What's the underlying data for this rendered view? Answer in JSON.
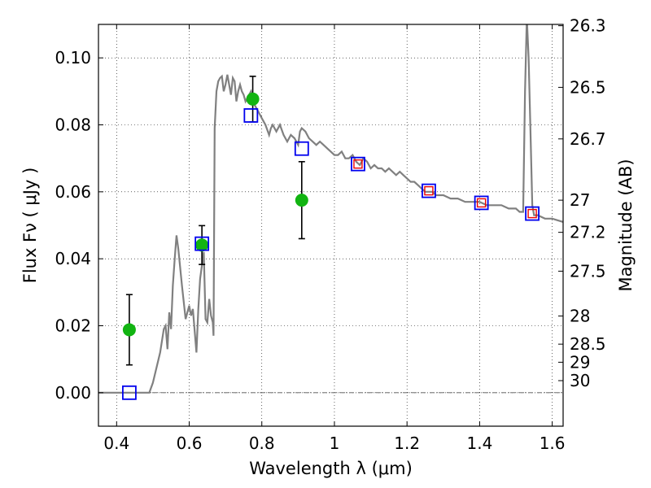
{
  "chart_data": {
    "type": "scatter",
    "xlabel": "Wavelength  λ (μm)",
    "ylabel": "Flux  Fν  ( μJy )",
    "y2label": "Magnitude (AB)",
    "xlim": [
      0.35,
      1.63
    ],
    "ylim": [
      -0.01,
      0.11
    ],
    "grid": true,
    "x_ticks": [
      {
        "value": 0.4,
        "label": "0.4"
      },
      {
        "value": 0.6,
        "label": "0.6"
      },
      {
        "value": 0.8,
        "label": "0.8"
      },
      {
        "value": 1.0,
        "label": "1"
      },
      {
        "value": 1.2,
        "label": "1.2"
      },
      {
        "value": 1.4,
        "label": "1.4"
      },
      {
        "value": 1.6,
        "label": "1.6"
      }
    ],
    "y_ticks": [
      {
        "value": 0.0,
        "label": "0.00"
      },
      {
        "value": 0.02,
        "label": "0.02"
      },
      {
        "value": 0.04,
        "label": "0.04"
      },
      {
        "value": 0.06,
        "label": "0.06"
      },
      {
        "value": 0.08,
        "label": "0.08"
      },
      {
        "value": 0.1,
        "label": "0.10"
      }
    ],
    "mag_ticks": [
      {
        "value": 0.1096,
        "label": "26.3"
      },
      {
        "value": 0.0912,
        "label": "26.5"
      },
      {
        "value": 0.0758,
        "label": "26.7"
      },
      {
        "value": 0.0575,
        "label": "27"
      },
      {
        "value": 0.0479,
        "label": "27.2"
      },
      {
        "value": 0.0363,
        "label": "27.5"
      },
      {
        "value": 0.0229,
        "label": "28"
      },
      {
        "value": 0.0145,
        "label": "28.5"
      },
      {
        "value": 0.0091,
        "label": "29"
      },
      {
        "value": 0.0036,
        "label": "30"
      }
    ],
    "series": [
      {
        "kind": "line",
        "color": "#808080",
        "x": [
          0.35,
          0.49,
          0.5,
          0.52,
          0.53,
          0.535,
          0.54,
          0.545,
          0.55,
          0.555,
          0.56,
          0.565,
          0.57,
          0.58,
          0.59,
          0.6,
          0.605,
          0.61,
          0.62,
          0.625,
          0.63,
          0.64,
          0.645,
          0.65,
          0.655,
          0.66,
          0.665,
          0.667,
          0.67,
          0.675,
          0.68,
          0.685,
          0.69,
          0.695,
          0.7,
          0.705,
          0.71,
          0.715,
          0.72,
          0.725,
          0.73,
          0.735,
          0.74,
          0.745,
          0.75,
          0.755,
          0.76,
          0.77,
          0.78,
          0.79,
          0.8,
          0.805,
          0.81,
          0.82,
          0.825,
          0.83,
          0.84,
          0.85,
          0.86,
          0.87,
          0.88,
          0.89,
          0.9,
          0.905,
          0.91,
          0.92,
          0.93,
          0.94,
          0.95,
          0.96,
          0.97,
          0.98,
          0.99,
          1.0,
          1.01,
          1.02,
          1.03,
          1.04,
          1.05,
          1.06,
          1.07,
          1.08,
          1.09,
          1.1,
          1.11,
          1.12,
          1.13,
          1.14,
          1.15,
          1.16,
          1.17,
          1.18,
          1.19,
          1.2,
          1.21,
          1.22,
          1.23,
          1.24,
          1.25,
          1.26,
          1.27,
          1.28,
          1.29,
          1.3,
          1.32,
          1.34,
          1.36,
          1.38,
          1.4,
          1.42,
          1.44,
          1.46,
          1.48,
          1.5,
          1.51,
          1.52,
          1.525,
          1.53,
          1.535,
          1.54,
          1.545,
          1.55,
          1.56,
          1.58,
          1.6,
          1.63
        ],
        "y": [
          0.0,
          0.0,
          0.003,
          0.012,
          0.019,
          0.02,
          0.013,
          0.024,
          0.019,
          0.032,
          0.04,
          0.047,
          0.043,
          0.032,
          0.022,
          0.026,
          0.023,
          0.025,
          0.012,
          0.025,
          0.034,
          0.042,
          0.022,
          0.021,
          0.028,
          0.023,
          0.021,
          0.017,
          0.079,
          0.09,
          0.093,
          0.094,
          0.0945,
          0.09,
          0.092,
          0.095,
          0.092,
          0.089,
          0.094,
          0.093,
          0.087,
          0.09,
          0.092,
          0.09,
          0.089,
          0.087,
          0.088,
          0.09,
          0.086,
          0.084,
          0.082,
          0.081,
          0.08,
          0.077,
          0.079,
          0.08,
          0.078,
          0.08,
          0.077,
          0.075,
          0.077,
          0.076,
          0.074,
          0.078,
          0.079,
          0.078,
          0.076,
          0.075,
          0.074,
          0.075,
          0.074,
          0.073,
          0.072,
          0.071,
          0.071,
          0.072,
          0.07,
          0.07,
          0.071,
          0.069,
          0.068,
          0.07,
          0.069,
          0.067,
          0.068,
          0.067,
          0.067,
          0.066,
          0.067,
          0.066,
          0.065,
          0.066,
          0.065,
          0.064,
          0.063,
          0.063,
          0.062,
          0.061,
          0.06,
          0.06,
          0.06,
          0.059,
          0.059,
          0.059,
          0.058,
          0.058,
          0.057,
          0.057,
          0.057,
          0.056,
          0.056,
          0.056,
          0.055,
          0.055,
          0.054,
          0.054,
          0.09,
          0.112,
          0.1,
          0.078,
          0.056,
          0.053,
          0.053,
          0.052,
          0.052,
          0.051
        ]
      },
      {
        "kind": "points",
        "marker": "circle",
        "color": "#12b412",
        "points": [
          {
            "x": 0.435,
            "y": 0.0188,
            "err": 0.0105
          },
          {
            "x": 0.635,
            "y": 0.0441,
            "err": 0.0058
          },
          {
            "x": 0.775,
            "y": 0.0877,
            "err": 0.0068
          },
          {
            "x": 0.91,
            "y": 0.0575,
            "err": 0.0115
          }
        ]
      },
      {
        "kind": "points",
        "marker": "square",
        "color": "#0000ee",
        "points": [
          {
            "x": 0.435,
            "y": 0.0
          },
          {
            "x": 0.635,
            "y": 0.0445
          },
          {
            "x": 0.77,
            "y": 0.0828
          },
          {
            "x": 0.91,
            "y": 0.0729
          },
          {
            "x": 1.065,
            "y": 0.0683
          },
          {
            "x": 1.26,
            "y": 0.0603
          },
          {
            "x": 1.405,
            "y": 0.0567
          },
          {
            "x": 1.545,
            "y": 0.0535
          }
        ]
      },
      {
        "kind": "points",
        "marker": "small-square",
        "color": "#ee0000",
        "points": [
          {
            "x": 1.065,
            "y": 0.0683
          },
          {
            "x": 1.26,
            "y": 0.0603
          },
          {
            "x": 1.405,
            "y": 0.0567
          },
          {
            "x": 1.545,
            "y": 0.0535
          }
        ]
      }
    ],
    "zero_line": 0.0
  }
}
